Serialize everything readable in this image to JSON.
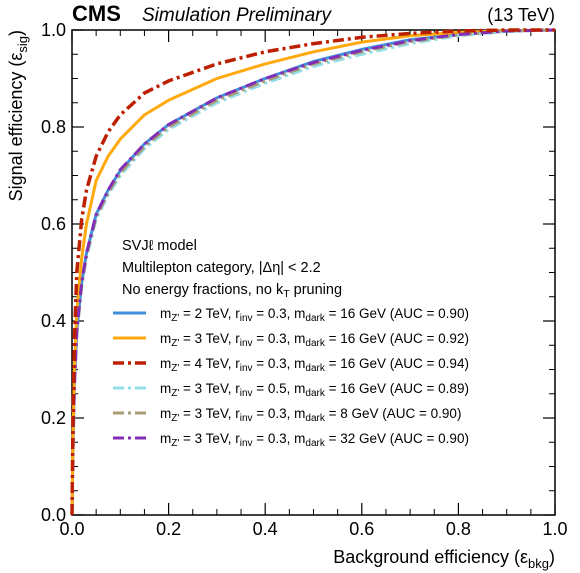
{
  "header": {
    "experiment": "CMS",
    "subtitle": "Simulation Preliminary",
    "energy": "(13 TeV)"
  },
  "annotation": {
    "lines": [
      "SVJℓ model",
      "Multilepton category, |Δη| < 2.2",
      "No energy fractions, no k_T pruning"
    ]
  },
  "chart_data": {
    "type": "line",
    "xlabel": "Background efficiency (ε_bkg)",
    "ylabel": "Signal efficiency (ε_sig)",
    "xlim": [
      0,
      1
    ],
    "ylim": [
      0,
      1
    ],
    "xticks": [
      "0.0",
      "0.2",
      "0.4",
      "0.6",
      "0.8",
      "1.0"
    ],
    "yticks": [
      "0.0",
      "0.2",
      "0.4",
      "0.6",
      "0.8",
      "1.0"
    ],
    "grid": false,
    "legend_position": "center-right",
    "series": [
      {
        "name": "m_Z' = 2 TeV, r_inv = 0.3, m_dark = 16 GeV (AUC = 0.90)",
        "color": "#3f90da",
        "style": "solid",
        "x": [
          0,
          0.002,
          0.005,
          0.01,
          0.02,
          0.03,
          0.05,
          0.075,
          0.1,
          0.15,
          0.2,
          0.3,
          0.4,
          0.5,
          0.6,
          0.7,
          0.8,
          0.9,
          1.0
        ],
        "y": [
          0,
          0.14,
          0.27,
          0.38,
          0.48,
          0.54,
          0.62,
          0.67,
          0.71,
          0.765,
          0.805,
          0.86,
          0.9,
          0.935,
          0.96,
          0.98,
          0.99,
          0.998,
          1.0
        ]
      },
      {
        "name": "m_Z' = 3 TeV, r_inv = 0.3, m_dark = 16 GeV (AUC = 0.92)",
        "color": "#ffa90e",
        "style": "solid",
        "x": [
          0,
          0.002,
          0.005,
          0.01,
          0.02,
          0.03,
          0.05,
          0.075,
          0.1,
          0.15,
          0.2,
          0.3,
          0.4,
          0.5,
          0.6,
          0.7,
          0.8,
          0.9,
          1.0
        ],
        "y": [
          0,
          0.16,
          0.3,
          0.42,
          0.53,
          0.6,
          0.69,
          0.74,
          0.775,
          0.825,
          0.855,
          0.9,
          0.93,
          0.955,
          0.975,
          0.988,
          0.995,
          0.999,
          1.0
        ]
      },
      {
        "name": "m_Z' = 4 TeV, r_inv = 0.3, m_dark = 16 GeV (AUC = 0.94)",
        "color": "#bd1f01",
        "style": "dashdot",
        "x": [
          0,
          0.002,
          0.005,
          0.01,
          0.02,
          0.03,
          0.05,
          0.075,
          0.1,
          0.15,
          0.2,
          0.3,
          0.4,
          0.5,
          0.6,
          0.7,
          0.8,
          0.9,
          1.0
        ],
        "y": [
          0,
          0.2,
          0.36,
          0.5,
          0.61,
          0.67,
          0.74,
          0.79,
          0.825,
          0.87,
          0.895,
          0.93,
          0.955,
          0.972,
          0.985,
          0.993,
          0.998,
          1.0,
          1.0
        ]
      },
      {
        "name": "m_Z' = 3 TeV, r_inv = 0.5, m_dark = 16 GeV (AUC = 0.89)",
        "color": "#94dee8",
        "style": "dashdot",
        "x": [
          0,
          0.002,
          0.005,
          0.01,
          0.02,
          0.03,
          0.05,
          0.075,
          0.1,
          0.15,
          0.2,
          0.3,
          0.4,
          0.5,
          0.6,
          0.7,
          0.8,
          0.9,
          1.0
        ],
        "y": [
          0,
          0.13,
          0.26,
          0.37,
          0.47,
          0.53,
          0.61,
          0.66,
          0.7,
          0.755,
          0.795,
          0.85,
          0.89,
          0.925,
          0.95,
          0.972,
          0.988,
          0.997,
          1.0
        ]
      },
      {
        "name": "m_Z' = 3 TeV, r_inv = 0.3, m_dark = 8 GeV (AUC = 0.90)",
        "color": "#a99b75",
        "style": "dashdot",
        "x": [
          0,
          0.002,
          0.005,
          0.01,
          0.02,
          0.03,
          0.05,
          0.075,
          0.1,
          0.15,
          0.2,
          0.3,
          0.4,
          0.5,
          0.6,
          0.7,
          0.8,
          0.9,
          1.0
        ],
        "y": [
          0,
          0.135,
          0.265,
          0.375,
          0.475,
          0.535,
          0.615,
          0.665,
          0.705,
          0.76,
          0.8,
          0.855,
          0.895,
          0.93,
          0.955,
          0.976,
          0.99,
          0.998,
          1.0
        ]
      },
      {
        "name": "m_Z' = 3 TeV, r_inv = 0.3, m_dark = 32 GeV (AUC = 0.90)",
        "color": "#832db6",
        "style": "dashdot",
        "x": [
          0,
          0.002,
          0.005,
          0.01,
          0.02,
          0.03,
          0.05,
          0.075,
          0.1,
          0.15,
          0.2,
          0.3,
          0.4,
          0.5,
          0.6,
          0.7,
          0.8,
          0.9,
          1.0
        ],
        "y": [
          0,
          0.14,
          0.27,
          0.38,
          0.48,
          0.54,
          0.62,
          0.67,
          0.712,
          0.765,
          0.805,
          0.86,
          0.9,
          0.933,
          0.958,
          0.978,
          0.991,
          0.998,
          1.0
        ]
      }
    ]
  }
}
